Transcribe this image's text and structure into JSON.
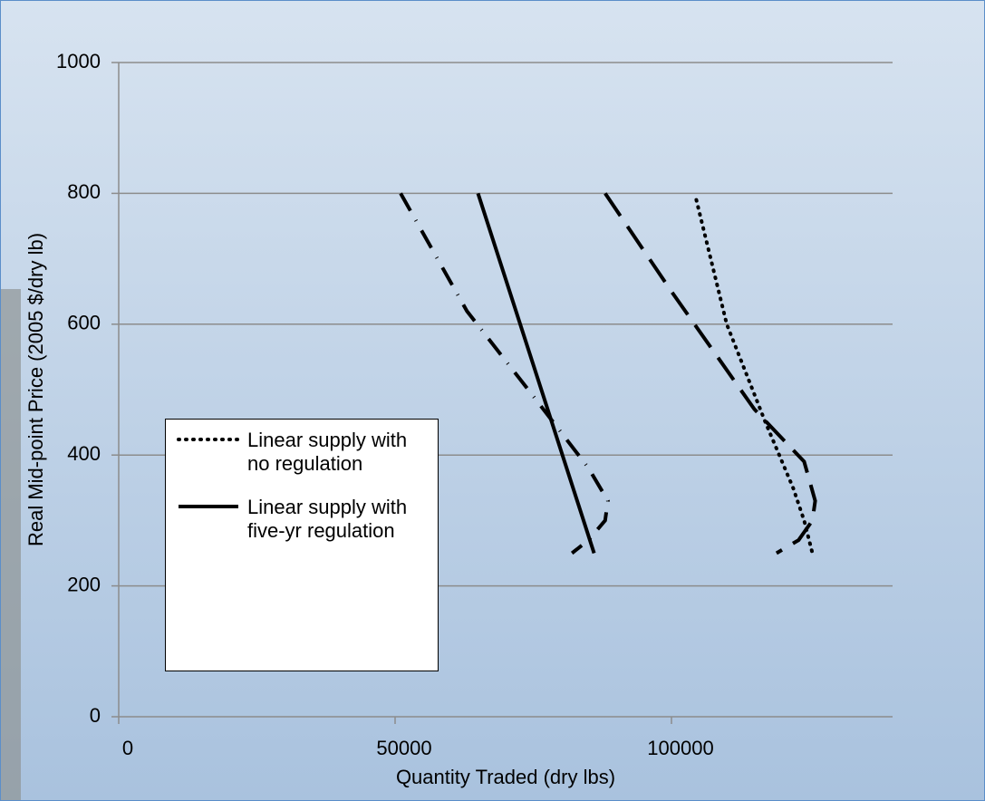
{
  "chart_data": {
    "type": "line",
    "xlabel": "Quantity Traded (dry lbs)",
    "ylabel": "Real Mid-point Price (2005 $/dry lb)",
    "xlim": [
      0,
      140000
    ],
    "xticks": [
      0,
      50000,
      100000
    ],
    "ylim": [
      0,
      1000
    ],
    "yticks": [
      0,
      200,
      400,
      600,
      800,
      1000
    ],
    "grid": true,
    "legend": "lower left",
    "series": [
      {
        "name": "Linear supply with no regulation",
        "color": "#000000",
        "style": "dotted",
        "x": [
          104500,
          110000,
          117000,
          122000,
          124000,
          125500
        ],
        "values": [
          790,
          600,
          450,
          350,
          300,
          250
        ]
      },
      {
        "name": "Linear supply with five-yr regulation",
        "color": "#000000",
        "style": "solid",
        "x": [
          65000,
          86000
        ],
        "values": [
          800,
          250
        ]
      },
      {
        "color": "#000000",
        "style": "dashed",
        "x": [
          88000,
          100000,
          115000,
          124000,
          126000,
          125500,
          123000,
          119000
        ],
        "values": [
          800,
          650,
          470,
          390,
          330,
          300,
          270,
          250
        ]
      },
      {
        "color": "#000000",
        "style": "dashdot",
        "x": [
          51000,
          63000,
          75000,
          85000,
          88500,
          88000,
          85000,
          82000
        ],
        "values": [
          800,
          620,
          490,
          380,
          330,
          300,
          270,
          250
        ]
      }
    ]
  }
}
